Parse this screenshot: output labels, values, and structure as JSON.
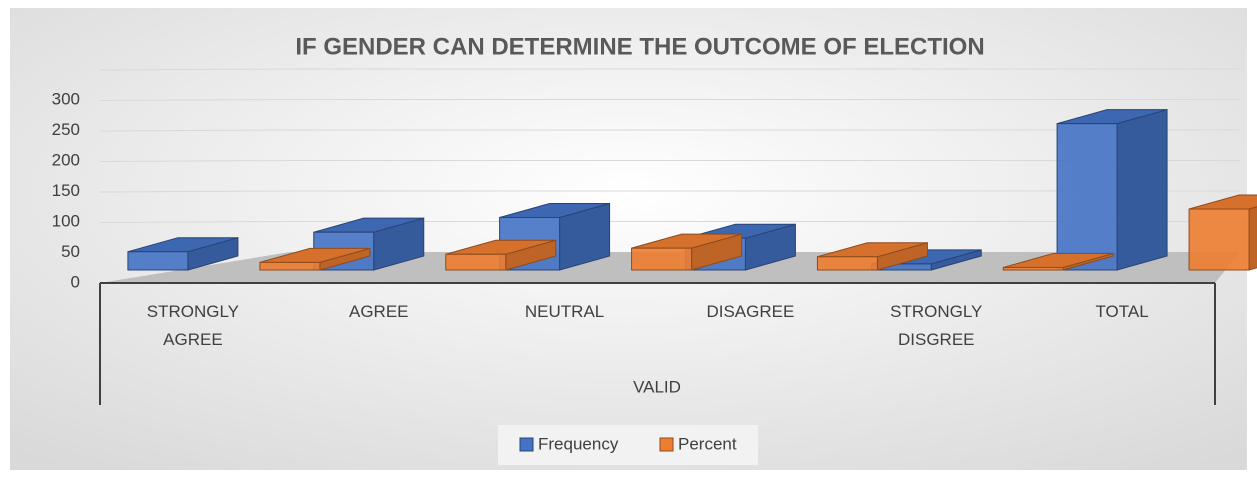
{
  "chart_data": {
    "type": "bar3d",
    "title": "IF GENDER CAN DETERMINE THE OUTCOME OF ELECTION",
    "group_label": "VALID",
    "categories": [
      "STRONGLY AGREE",
      "AGREE",
      "NEUTRAL",
      "DISAGREE",
      "STRONGLY DISGREE",
      "TOTAL"
    ],
    "series": [
      {
        "name": "Frequency",
        "color": "#4472c4",
        "values": [
          30,
          62,
          86,
          52,
          10,
          240
        ]
      },
      {
        "name": "Percent",
        "color": "#ed7d31",
        "values": [
          12.5,
          25.8,
          35.8,
          21.7,
          4.2,
          100
        ]
      }
    ],
    "ylim": [
      0,
      300
    ],
    "yticks": [
      0,
      50,
      100,
      150,
      200,
      250,
      300
    ],
    "grid": true,
    "legend": "bottom"
  }
}
